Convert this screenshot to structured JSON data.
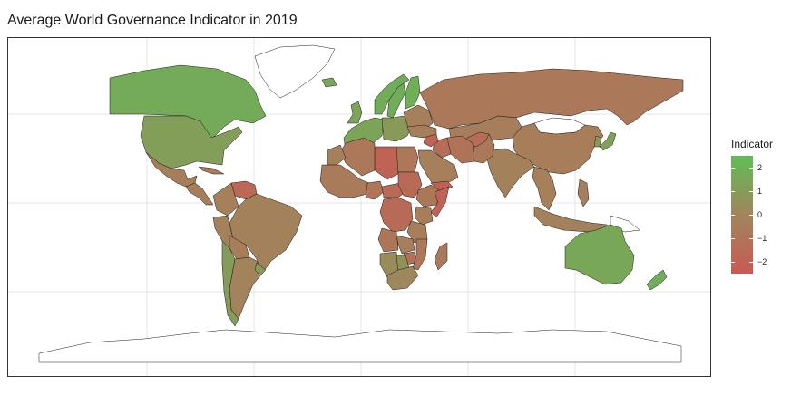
{
  "title": "Average World Governance Indicator in 2019",
  "colors": {
    "low": "#c75b53",
    "mid": "#a0855c",
    "high": "#5fbd56",
    "missing": "#ffffff",
    "border": "#1a1a1a",
    "grid": "#e6e6e6"
  },
  "legend": {
    "title": "Indicator",
    "min": -2.5,
    "max": 2.5,
    "ticks": [
      {
        "value": 2,
        "label": "2"
      },
      {
        "value": 1,
        "label": "1"
      },
      {
        "value": 0,
        "label": "0"
      },
      {
        "value": -1,
        "label": "−1"
      },
      {
        "value": -2,
        "label": "−2"
      }
    ]
  },
  "chart_data": {
    "type": "choropleth",
    "title": "Average World Governance Indicator in 2019",
    "legend_title": "Indicator",
    "scale": [
      -2.5,
      2.5
    ],
    "regions": [
      {
        "name": "Canada",
        "value": 1.7
      },
      {
        "name": "United States",
        "value": 1.1
      },
      {
        "name": "Greenland",
        "value": null
      },
      {
        "name": "Mexico",
        "value": -0.4
      },
      {
        "name": "Central America",
        "value": -0.5
      },
      {
        "name": "Cuba",
        "value": -0.6
      },
      {
        "name": "Venezuela",
        "value": -1.7
      },
      {
        "name": "Colombia",
        "value": -0.3
      },
      {
        "name": "Brazil",
        "value": -0.2
      },
      {
        "name": "Peru",
        "value": -0.2
      },
      {
        "name": "Bolivia",
        "value": -0.5
      },
      {
        "name": "Argentina",
        "value": -0.1
      },
      {
        "name": "Chile",
        "value": 1.0
      },
      {
        "name": "Uruguay",
        "value": 0.9
      },
      {
        "name": "Norway",
        "value": 1.8
      },
      {
        "name": "Sweden",
        "value": 1.8
      },
      {
        "name": "Finland",
        "value": 1.9
      },
      {
        "name": "Iceland",
        "value": 1.5
      },
      {
        "name": "United Kingdom",
        "value": 1.4
      },
      {
        "name": "Western Europe",
        "value": 1.4
      },
      {
        "name": "Central Europe",
        "value": 0.9
      },
      {
        "name": "Eastern Europe",
        "value": -0.3
      },
      {
        "name": "Russia",
        "value": -0.7
      },
      {
        "name": "Kazakhstan",
        "value": -0.4
      },
      {
        "name": "Mongolia",
        "value": null
      },
      {
        "name": "China",
        "value": -0.5
      },
      {
        "name": "Japan",
        "value": 1.3
      },
      {
        "name": "Korea",
        "value": 1.0
      },
      {
        "name": "India",
        "value": -0.2
      },
      {
        "name": "Pakistan",
        "value": -0.8
      },
      {
        "name": "Afghanistan",
        "value": -1.4
      },
      {
        "name": "Iran",
        "value": -1.1
      },
      {
        "name": "Iraq",
        "value": -1.4
      },
      {
        "name": "Syria",
        "value": -2.0
      },
      {
        "name": "Turkey",
        "value": -0.4
      },
      {
        "name": "Arabian Peninsula",
        "value": -0.3
      },
      {
        "name": "Yemen",
        "value": -2.2
      },
      {
        "name": "Egypt",
        "value": -0.8
      },
      {
        "name": "Libya",
        "value": -2.0
      },
      {
        "name": "Algeria",
        "value": -0.8
      },
      {
        "name": "Morocco",
        "value": -0.3
      },
      {
        "name": "West Africa",
        "value": -0.6
      },
      {
        "name": "Nigeria",
        "value": -1.0
      },
      {
        "name": "Central African Republic",
        "value": -1.6
      },
      {
        "name": "Sudan",
        "value": -1.6
      },
      {
        "name": "Ethiopia",
        "value": -0.9
      },
      {
        "name": "Somalia",
        "value": -2.1
      },
      {
        "name": "Kenya",
        "value": -0.5
      },
      {
        "name": "DR Congo",
        "value": -1.6
      },
      {
        "name": "Tanzania",
        "value": -0.4
      },
      {
        "name": "Angola",
        "value": -0.9
      },
      {
        "name": "Zambia",
        "value": -0.3
      },
      {
        "name": "Zimbabwe",
        "value": -1.2
      },
      {
        "name": "Mozambique",
        "value": -0.8
      },
      {
        "name": "Namibia",
        "value": 0.3
      },
      {
        "name": "Botswana",
        "value": 0.6
      },
      {
        "name": "South Africa",
        "value": 0.1
      },
      {
        "name": "Madagascar",
        "value": -0.6
      },
      {
        "name": "Southeast Asia",
        "value": -0.3
      },
      {
        "name": "Indonesia",
        "value": -0.2
      },
      {
        "name": "Philippines",
        "value": -0.4
      },
      {
        "name": "Papua New Guinea",
        "value": null
      },
      {
        "name": "Australia",
        "value": 1.5
      },
      {
        "name": "New Zealand",
        "value": 1.8
      },
      {
        "name": "Antarctica",
        "value": null
      }
    ]
  }
}
